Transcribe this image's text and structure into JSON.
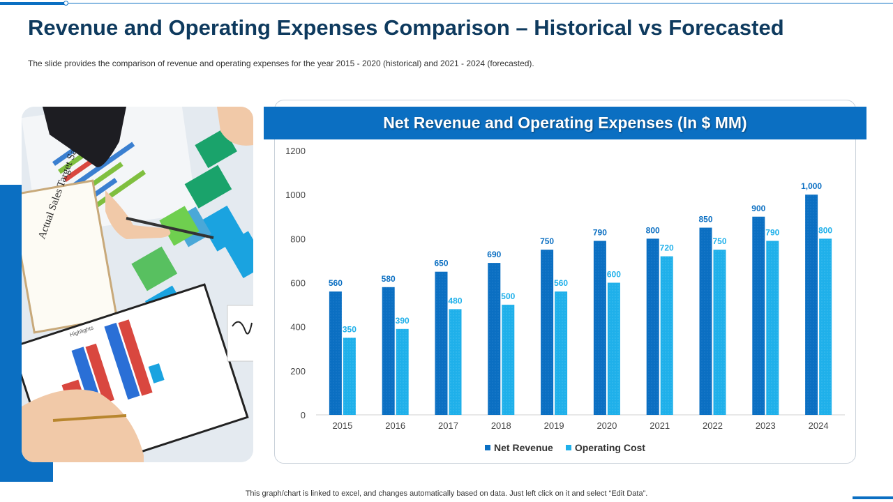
{
  "slide": {
    "title": "Revenue and Operating Expenses Comparison – Historical vs Forecasted",
    "subtitle": "The slide provides  the comparison  of revenue  and operating  expenses for the year 2015 - 2020 (historical) and 2021 - 2024 (forecasted).",
    "footer": "This graph/chart is linked to excel,  and changes automatically based on data. Just left click on it and select “Edit Data”."
  },
  "colors": {
    "accent": "#0b6fc2",
    "title": "#0e3a5e",
    "net_revenue": "#0b6fc2",
    "operating_cost": "#1fb0ea"
  },
  "photo": {
    "note_text": "Actual Sales Target Sales",
    "chart_caption": "Highlights"
  },
  "chart_data": {
    "type": "bar",
    "title": "Net Revenue and Operating Expenses (In $ MM)",
    "categories": [
      "2015",
      "2016",
      "2017",
      "2018",
      "2019",
      "2020",
      "2021",
      "2022",
      "2023",
      "2024"
    ],
    "series": [
      {
        "name": "Net Revenue",
        "values": [
          560,
          580,
          650,
          690,
          750,
          790,
          800,
          850,
          900,
          1000
        ],
        "labels": [
          "560",
          "580",
          "650",
          "690",
          "750",
          "790",
          "800",
          "850",
          "900",
          "1,000"
        ]
      },
      {
        "name": "Operating Cost",
        "values": [
          350,
          390,
          480,
          500,
          560,
          600,
          720,
          750,
          790,
          800
        ],
        "labels": [
          "350",
          "390",
          "480",
          "500",
          "560",
          "600",
          "720",
          "750",
          "790",
          "800"
        ]
      }
    ],
    "ylim": [
      0,
      1200
    ],
    "yticks": [
      "0",
      "200",
      "400",
      "600",
      "800",
      "1000",
      "1200"
    ],
    "xlabel": "",
    "ylabel": "",
    "legend_position": "bottom",
    "grid": false
  }
}
